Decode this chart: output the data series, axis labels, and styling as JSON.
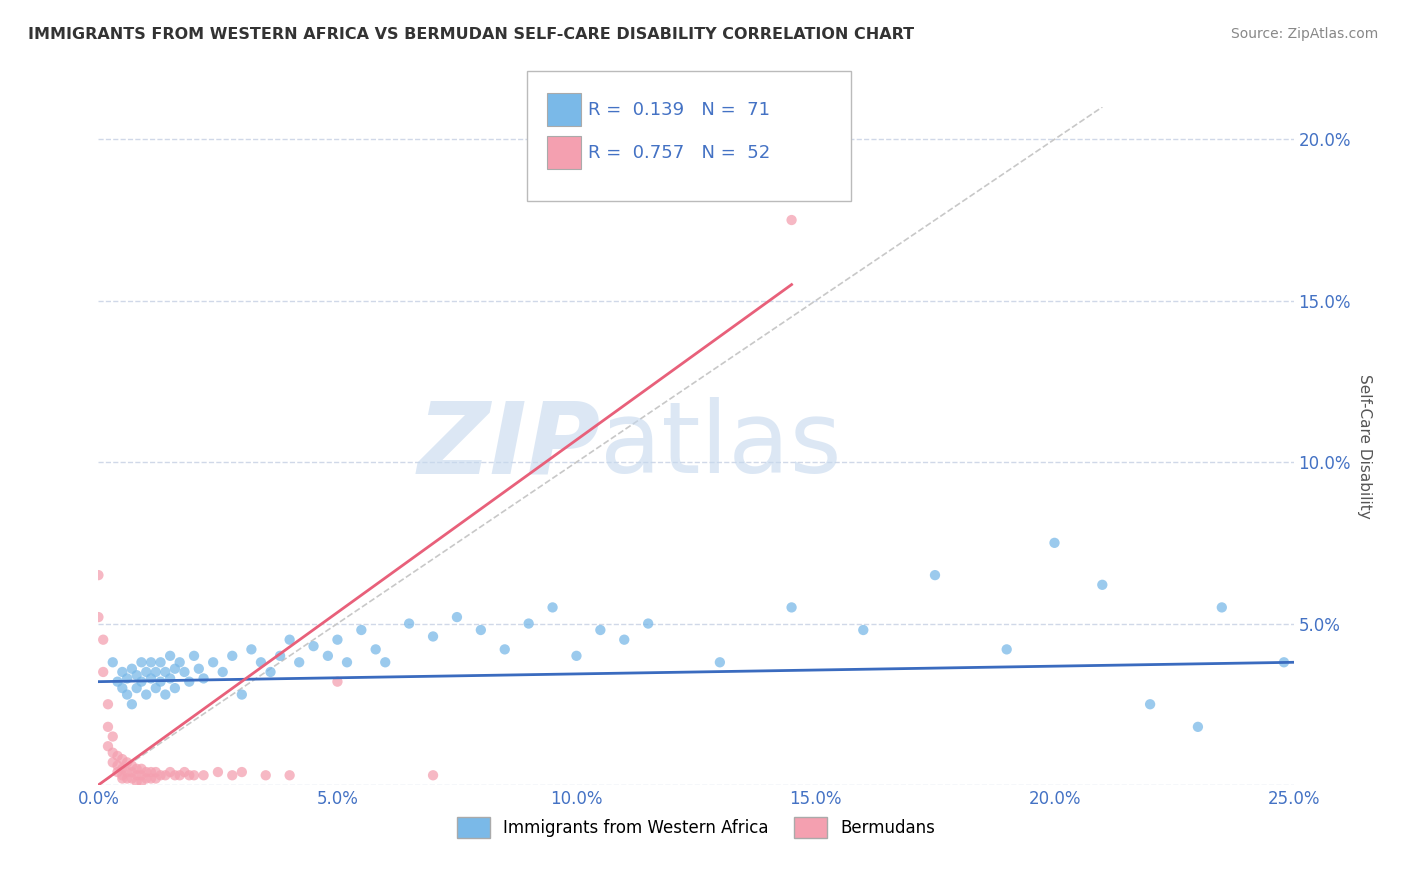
{
  "title": "IMMIGRANTS FROM WESTERN AFRICA VS BERMUDAN SELF-CARE DISABILITY CORRELATION CHART",
  "source": "Source: ZipAtlas.com",
  "ylabel": "Self-Care Disability",
  "xlim": [
    0.0,
    0.25
  ],
  "ylim": [
    0.0,
    0.21
  ],
  "xticks": [
    0.0,
    0.05,
    0.1,
    0.15,
    0.2,
    0.25
  ],
  "xticklabels": [
    "0.0%",
    "5.0%",
    "10.0%",
    "15.0%",
    "20.0%",
    "25.0%"
  ],
  "yticks": [
    0.0,
    0.05,
    0.1,
    0.15,
    0.2
  ],
  "yticklabels": [
    "",
    "5.0%",
    "10.0%",
    "15.0%",
    "20.0%"
  ],
  "R_blue": 0.139,
  "N_blue": 71,
  "R_pink": 0.757,
  "N_pink": 52,
  "blue_scatter": [
    [
      0.003,
      0.038
    ],
    [
      0.004,
      0.032
    ],
    [
      0.005,
      0.035
    ],
    [
      0.005,
      0.03
    ],
    [
      0.006,
      0.033
    ],
    [
      0.006,
      0.028
    ],
    [
      0.007,
      0.036
    ],
    [
      0.007,
      0.025
    ],
    [
      0.008,
      0.034
    ],
    [
      0.008,
      0.03
    ],
    [
      0.009,
      0.032
    ],
    [
      0.009,
      0.038
    ],
    [
      0.01,
      0.035
    ],
    [
      0.01,
      0.028
    ],
    [
      0.011,
      0.033
    ],
    [
      0.011,
      0.038
    ],
    [
      0.012,
      0.03
    ],
    [
      0.012,
      0.035
    ],
    [
      0.013,
      0.032
    ],
    [
      0.013,
      0.038
    ],
    [
      0.014,
      0.035
    ],
    [
      0.014,
      0.028
    ],
    [
      0.015,
      0.04
    ],
    [
      0.015,
      0.033
    ],
    [
      0.016,
      0.036
    ],
    [
      0.016,
      0.03
    ],
    [
      0.017,
      0.038
    ],
    [
      0.018,
      0.035
    ],
    [
      0.019,
      0.032
    ],
    [
      0.02,
      0.04
    ],
    [
      0.021,
      0.036
    ],
    [
      0.022,
      0.033
    ],
    [
      0.024,
      0.038
    ],
    [
      0.026,
      0.035
    ],
    [
      0.028,
      0.04
    ],
    [
      0.03,
      0.028
    ],
    [
      0.032,
      0.042
    ],
    [
      0.034,
      0.038
    ],
    [
      0.036,
      0.035
    ],
    [
      0.038,
      0.04
    ],
    [
      0.04,
      0.045
    ],
    [
      0.042,
      0.038
    ],
    [
      0.045,
      0.043
    ],
    [
      0.048,
      0.04
    ],
    [
      0.05,
      0.045
    ],
    [
      0.052,
      0.038
    ],
    [
      0.055,
      0.048
    ],
    [
      0.058,
      0.042
    ],
    [
      0.06,
      0.038
    ],
    [
      0.065,
      0.05
    ],
    [
      0.07,
      0.046
    ],
    [
      0.075,
      0.052
    ],
    [
      0.08,
      0.048
    ],
    [
      0.085,
      0.042
    ],
    [
      0.09,
      0.05
    ],
    [
      0.095,
      0.055
    ],
    [
      0.1,
      0.04
    ],
    [
      0.105,
      0.048
    ],
    [
      0.11,
      0.045
    ],
    [
      0.115,
      0.05
    ],
    [
      0.13,
      0.038
    ],
    [
      0.145,
      0.055
    ],
    [
      0.16,
      0.048
    ],
    [
      0.175,
      0.065
    ],
    [
      0.19,
      0.042
    ],
    [
      0.2,
      0.075
    ],
    [
      0.21,
      0.062
    ],
    [
      0.22,
      0.025
    ],
    [
      0.23,
      0.018
    ],
    [
      0.235,
      0.055
    ],
    [
      0.248,
      0.038
    ]
  ],
  "pink_scatter": [
    [
      0.0,
      0.065
    ],
    [
      0.0,
      0.052
    ],
    [
      0.001,
      0.045
    ],
    [
      0.001,
      0.035
    ],
    [
      0.002,
      0.025
    ],
    [
      0.002,
      0.018
    ],
    [
      0.002,
      0.012
    ],
    [
      0.003,
      0.015
    ],
    [
      0.003,
      0.01
    ],
    [
      0.003,
      0.007
    ],
    [
      0.004,
      0.009
    ],
    [
      0.004,
      0.006
    ],
    [
      0.004,
      0.004
    ],
    [
      0.005,
      0.008
    ],
    [
      0.005,
      0.005
    ],
    [
      0.005,
      0.003
    ],
    [
      0.005,
      0.002
    ],
    [
      0.006,
      0.007
    ],
    [
      0.006,
      0.004
    ],
    [
      0.006,
      0.002
    ],
    [
      0.007,
      0.006
    ],
    [
      0.007,
      0.004
    ],
    [
      0.007,
      0.002
    ],
    [
      0.008,
      0.005
    ],
    [
      0.008,
      0.003
    ],
    [
      0.008,
      0.001
    ],
    [
      0.009,
      0.005
    ],
    [
      0.009,
      0.003
    ],
    [
      0.009,
      0.001
    ],
    [
      0.01,
      0.004
    ],
    [
      0.01,
      0.002
    ],
    [
      0.011,
      0.004
    ],
    [
      0.011,
      0.002
    ],
    [
      0.012,
      0.004
    ],
    [
      0.012,
      0.002
    ],
    [
      0.013,
      0.003
    ],
    [
      0.014,
      0.003
    ],
    [
      0.015,
      0.004
    ],
    [
      0.016,
      0.003
    ],
    [
      0.017,
      0.003
    ],
    [
      0.018,
      0.004
    ],
    [
      0.019,
      0.003
    ],
    [
      0.02,
      0.003
    ],
    [
      0.022,
      0.003
    ],
    [
      0.025,
      0.004
    ],
    [
      0.028,
      0.003
    ],
    [
      0.03,
      0.004
    ],
    [
      0.035,
      0.003
    ],
    [
      0.04,
      0.003
    ],
    [
      0.05,
      0.032
    ],
    [
      0.07,
      0.003
    ],
    [
      0.145,
      0.175
    ]
  ],
  "watermark_zip": "ZIP",
  "watermark_atlas": "atlas",
  "blue_color": "#7ab9e8",
  "pink_color": "#f4a0b0",
  "blue_line_color": "#3a6bbf",
  "pink_line_color": "#e8607a",
  "diagonal_color": "#c8c8c8",
  "background_color": "#ffffff",
  "grid_color": "#d0d8e8",
  "legend_blue_label": "Immigrants from Western Africa",
  "legend_pink_label": "Bermudans"
}
